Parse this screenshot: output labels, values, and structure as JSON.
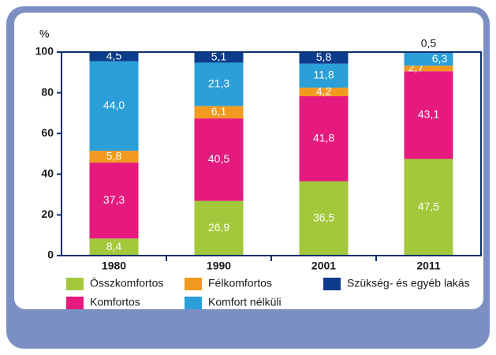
{
  "chart_data": {
    "type": "stacked-bar",
    "y_label": "%",
    "categories": [
      "1980",
      "1990",
      "2001",
      "2011"
    ],
    "ylim": [
      0,
      100
    ],
    "yticks": [
      0,
      20,
      40,
      60,
      80,
      100
    ],
    "series": [
      {
        "name": "Összkomfortos",
        "color": "#a3c83b",
        "values": [
          8.4,
          26.9,
          36.5,
          47.5
        ],
        "value_labels": [
          "8,4",
          "26,9",
          "36,5",
          "47,5"
        ]
      },
      {
        "name": "Komfortos",
        "color": "#e5197e",
        "values": [
          37.3,
          40.5,
          41.8,
          43.1
        ],
        "value_labels": [
          "37,3",
          "40,5",
          "41,8",
          "43,1"
        ]
      },
      {
        "name": "Félkomfortos",
        "color": "#f29a1f",
        "values": [
          5.8,
          6.1,
          4.2,
          2.7
        ],
        "value_labels": [
          "5,8",
          "6,1",
          "4,2",
          "2,7"
        ]
      },
      {
        "name": "Komfort nélküli",
        "color": "#2b9fd7",
        "values": [
          44.0,
          21.3,
          11.8,
          6.3
        ],
        "value_labels": [
          "44,0",
          "21,3",
          "11,8",
          "6,3"
        ]
      },
      {
        "name": "Szükség- és egyéb lakás",
        "color": "#0c3d8a",
        "values": [
          4.5,
          5.1,
          5.8,
          0.5
        ],
        "value_labels": [
          "4,5",
          "5,1",
          "5,8",
          "0,5"
        ]
      }
    ]
  }
}
